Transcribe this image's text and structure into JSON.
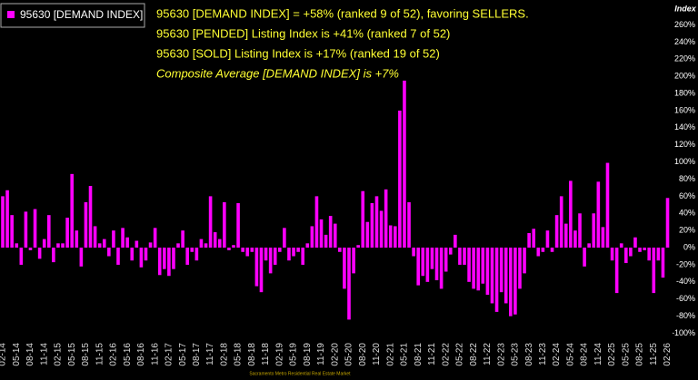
{
  "chart_data": {
    "type": "bar",
    "y_axis_label": "Index",
    "annotations": [
      "95630 [DEMAND INDEX] = +58% (ranked 9 of 52), favoring SELLERS.",
      "95630 [PENDED] Listing Index is +41% (ranked 7 of 52)",
      "95630 [SOLD] Listing Index is +17% (ranked 19 of 52)",
      "Composite Average [DEMAND INDEX] is +7%"
    ],
    "footer": "Sacramento Metro Residential Real Estate Market",
    "categories": [
      "02-14",
      null,
      null,
      "05-14",
      null,
      null,
      "08-14",
      null,
      null,
      "11-14",
      null,
      null,
      "02-15",
      null,
      null,
      "05-15",
      null,
      null,
      "08-15",
      null,
      null,
      "11-15",
      null,
      null,
      "02-16",
      null,
      null,
      "05-16",
      null,
      null,
      "08-16",
      null,
      null,
      "11-16",
      null,
      null,
      "02-17",
      null,
      null,
      "05-17",
      null,
      null,
      "08-17",
      null,
      null,
      "11-17",
      null,
      null,
      "02-18",
      null,
      null,
      "05-18",
      null,
      null,
      "08-18",
      null,
      null,
      "11-18",
      null,
      null,
      "02-19",
      null,
      null,
      "05-19",
      null,
      null,
      "08-19",
      null,
      null,
      "11-19",
      null,
      null,
      "02-20",
      null,
      null,
      "05-20",
      null,
      null,
      "08-20",
      null,
      null,
      "11-20",
      null,
      null,
      "02-21",
      null,
      null,
      "05-21",
      null,
      null,
      "08-21",
      null,
      null,
      "11-21",
      null,
      null,
      "02-22",
      null,
      null,
      "05-22",
      null,
      null,
      "08-22",
      null,
      null,
      "11-22",
      null,
      null,
      "02-23",
      null,
      null,
      "05-23",
      null,
      null,
      "08-23",
      null,
      null,
      "11-23",
      null,
      null,
      "02-24",
      null,
      null,
      "05-24",
      null,
      null,
      "08-24",
      null,
      null,
      "11-24",
      null,
      null,
      "02-25",
      null,
      null,
      "05-25",
      null,
      null,
      "08-25",
      null,
      null,
      "11-25",
      null,
      null,
      "02-26"
    ],
    "series": [
      {
        "name": "95630 [DEMAND INDEX]",
        "color": "#ff00ff",
        "values": [
          60,
          67,
          38,
          5,
          -20,
          42,
          -3,
          45,
          -13,
          10,
          38,
          -17,
          5,
          5,
          35,
          86,
          20,
          -22,
          53,
          72,
          25,
          5,
          10,
          -10,
          20,
          -20,
          23,
          12,
          -15,
          8,
          -23,
          -15,
          6,
          23,
          -32,
          -25,
          -33,
          -25,
          5,
          20,
          -20,
          -5,
          -15,
          10,
          5,
          60,
          18,
          10,
          53,
          -3,
          3,
          52,
          -5,
          -10,
          -5,
          -45,
          -52,
          -15,
          -30,
          -20,
          -5,
          23,
          -15,
          -10,
          -5,
          -20,
          5,
          25,
          60,
          33,
          15,
          37,
          28,
          -5,
          -48,
          -84,
          -30,
          3,
          66,
          30,
          52,
          60,
          43,
          68,
          26,
          25,
          160,
          195,
          53,
          -10,
          -44,
          -33,
          -40,
          -25,
          -38,
          -48,
          -28,
          -8,
          15,
          -20,
          -20,
          -40,
          -48,
          -50,
          -42,
          -55,
          -65,
          -75,
          -52,
          -65,
          -80,
          -78,
          -48,
          -30,
          17,
          22,
          -10,
          -5,
          20,
          -5,
          38,
          60,
          28,
          78,
          20,
          40,
          -22,
          5,
          40,
          77,
          24,
          99,
          -15,
          -53,
          5,
          -18,
          -10,
          12,
          -5,
          -3,
          -15,
          -53,
          -15,
          -35,
          58
        ]
      }
    ],
    "ylim": [
      -100,
      260
    ],
    "yticks": [
      {
        "value": -100,
        "label": "-100%"
      },
      {
        "value": -80,
        "label": "-80%"
      },
      {
        "value": -60,
        "label": "-60%"
      },
      {
        "value": -40,
        "label": "-40%"
      },
      {
        "value": -20,
        "label": "-20%"
      },
      {
        "value": 0,
        "label": "0%"
      },
      {
        "value": 20,
        "label": "20%"
      },
      {
        "value": 40,
        "label": "40%"
      },
      {
        "value": 60,
        "label": "60%"
      },
      {
        "value": 80,
        "label": "80%"
      },
      {
        "value": 100,
        "label": "100%"
      },
      {
        "value": 120,
        "label": "120%"
      },
      {
        "value": 140,
        "label": "140%"
      },
      {
        "value": 160,
        "label": "160%"
      },
      {
        "value": 180,
        "label": "180%"
      },
      {
        "value": 200,
        "label": "200%"
      },
      {
        "value": 220,
        "label": "220%"
      },
      {
        "value": 240,
        "label": "240%"
      },
      {
        "value": 260,
        "label": "260%"
      }
    ],
    "grid": false,
    "legend": "top-left"
  }
}
